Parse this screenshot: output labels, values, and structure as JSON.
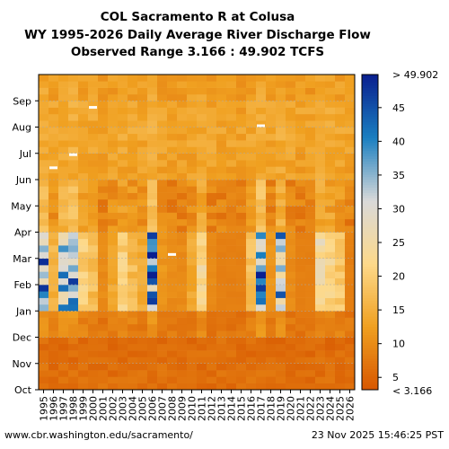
{
  "chart_data": {
    "type": "heatmap",
    "title": "COL Sacramento R at Colusa",
    "subtitle": "WY 1995-2026 Daily Average River Discharge Flow",
    "range_text": "Observed Range 3.166 : 49.902 TCFS",
    "xlabel": "",
    "ylabel": "",
    "x_categories": [
      "1995",
      "1996",
      "1997",
      "1998",
      "1999",
      "2000",
      "2001",
      "2002",
      "2003",
      "2004",
      "2005",
      "2006",
      "2007",
      "2008",
      "2009",
      "2010",
      "2011",
      "2012",
      "2013",
      "2014",
      "2015",
      "2016",
      "2017",
      "2018",
      "2019",
      "2020",
      "2021",
      "2022",
      "2023",
      "2024",
      "2025",
      "2026"
    ],
    "y_categories": [
      "Oct",
      "Nov",
      "Dec",
      "Jan",
      "Feb",
      "Mar",
      "Apr",
      "May",
      "Jun",
      "Jul",
      "Aug",
      "Sep"
    ],
    "colorbar": {
      "min": 3.166,
      "max": 49.902,
      "ticks": [
        5,
        10,
        15,
        20,
        25,
        30,
        35,
        40,
        45
      ],
      "top_label": "> 49.902",
      "bottom_label": "< 3.166",
      "colors": [
        "#d75600",
        "#f0a020",
        "#fdd98a",
        "#d9d9d9",
        "#1a7fc0",
        "#0a1f8f"
      ]
    },
    "water_year_wetness": [
      0.85,
      0.3,
      0.75,
      0.9,
      0.45,
      0.35,
      0.1,
      0.25,
      0.45,
      0.35,
      0.25,
      0.9,
      0.15,
      0.1,
      0.1,
      0.25,
      0.55,
      0.1,
      0.05,
      0.05,
      0.05,
      0.35,
      0.95,
      0.15,
      0.75,
      0.1,
      0.05,
      0.05,
      0.6,
      0.5,
      0.4,
      0.05
    ],
    "missing_marks": [
      {
        "year": "1996",
        "month_pos": 8.45
      },
      {
        "year": "1998",
        "month_pos": 8.95
      },
      {
        "year": "2000",
        "month_pos": 10.75
      },
      {
        "year": "2008",
        "month_pos": 5.15
      },
      {
        "year": "2017",
        "month_pos": 10.05
      }
    ]
  },
  "footer": {
    "source": "www.cbr.washington.edu/sacramento/",
    "timestamp": "23 Nov 2025 15:46:25 PST"
  }
}
